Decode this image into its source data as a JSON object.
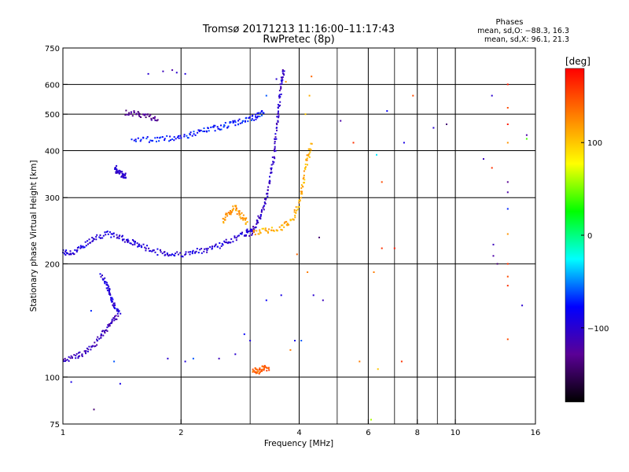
{
  "chart_data": {
    "type": "scatter",
    "title": "Tromsø 20171213 11:16:00–11:17:43",
    "subtitle": "RwPretec (8p)",
    "xlabel": "Frequency [MHz]",
    "ylabel": "Stationary phase Virtual Height [km]",
    "x_scale": "log",
    "y_scale": "log",
    "xlim": [
      1,
      16
    ],
    "ylim": [
      75,
      750
    ],
    "x_ticks": [
      1,
      2,
      4,
      6,
      8,
      10,
      16
    ],
    "x_tick_labels": [
      "1",
      "2",
      "4",
      "6",
      "8",
      "10",
      "16"
    ],
    "x_gridlines": [
      2,
      4,
      6,
      8,
      10
    ],
    "x_minor_gridlines": [
      3,
      5,
      7,
      9
    ],
    "y_ticks": [
      75,
      100,
      200,
      300,
      400,
      500,
      600,
      750
    ],
    "y_tick_labels": [
      "75",
      "100",
      "200",
      "300",
      "400",
      "500",
      "600",
      "750"
    ],
    "grid": true,
    "stats_block": {
      "heading": "Phases",
      "line_o": "mean, sd,O: −88.3, 16.3",
      "line_x": "mean, sd,X:  96.1, 21.3"
    },
    "colorbar": {
      "label": "[deg]",
      "range": [
        -180,
        180
      ],
      "ticks": [
        100,
        0,
        -100
      ],
      "tick_labels": [
        "100",
        "0",
        "−100"
      ],
      "colormap": [
        "#000000",
        "#5a0096",
        "#0000ff",
        "#00ffff",
        "#00ff00",
        "#ffff00",
        "#ff8000",
        "#ff0000"
      ]
    },
    "traces": [
      {
        "points": [
          [
            1.0,
            215
          ],
          [
            1.05,
            213
          ],
          [
            1.12,
            222
          ],
          [
            1.2,
            235
          ],
          [
            1.3,
            240
          ],
          [
            1.4,
            236
          ],
          [
            1.5,
            228
          ],
          [
            1.6,
            222
          ],
          [
            1.75,
            215
          ],
          [
            1.9,
            212
          ],
          [
            2.1,
            213
          ],
          [
            2.3,
            218
          ],
          [
            2.5,
            224
          ],
          [
            2.7,
            232
          ],
          [
            2.9,
            240
          ],
          [
            3.05,
            250
          ]
        ],
        "phase": -95
      },
      {
        "points": [
          [
            1.5,
            430
          ],
          [
            1.7,
            428
          ],
          [
            1.9,
            432
          ],
          [
            2.1,
            440
          ],
          [
            2.3,
            452
          ],
          [
            2.5,
            462
          ],
          [
            2.7,
            472
          ],
          [
            2.9,
            480
          ],
          [
            3.1,
            492
          ],
          [
            3.25,
            505
          ]
        ],
        "phase": -75
      },
      {
        "points": [
          [
            1.45,
            505
          ],
          [
            1.55,
            500
          ],
          [
            1.65,
            493
          ],
          [
            1.75,
            488
          ]
        ],
        "phase": -130
      },
      {
        "points": [
          [
            3.0,
            240
          ],
          [
            3.1,
            252
          ],
          [
            3.2,
            270
          ],
          [
            3.3,
            300
          ],
          [
            3.38,
            340
          ],
          [
            3.45,
            390
          ],
          [
            3.5,
            450
          ],
          [
            3.55,
            520
          ],
          [
            3.6,
            600
          ],
          [
            3.65,
            660
          ]
        ],
        "phase": -105
      },
      {
        "points": [
          [
            3.05,
            242
          ],
          [
            3.3,
            245
          ],
          [
            3.6,
            250
          ],
          [
            3.85,
            262
          ],
          [
            4.0,
            290
          ],
          [
            4.1,
            330
          ],
          [
            4.2,
            380
          ],
          [
            4.3,
            420
          ]
        ],
        "phase": 110
      },
      {
        "points": [
          [
            2.55,
            260
          ],
          [
            2.65,
            272
          ],
          [
            2.75,
            282
          ],
          [
            2.85,
            268
          ],
          [
            2.95,
            258
          ]
        ],
        "phase": 120
      },
      {
        "points": [
          [
            1.0,
            110
          ],
          [
            1.08,
            113
          ],
          [
            1.15,
            117
          ],
          [
            1.22,
            124
          ],
          [
            1.28,
            132
          ],
          [
            1.33,
            140
          ],
          [
            1.38,
            145
          ]
        ],
        "phase": -110
      },
      {
        "points": [
          [
            1.25,
            185
          ],
          [
            1.3,
            175
          ],
          [
            1.32,
            165
          ],
          [
            1.35,
            155
          ],
          [
            1.4,
            148
          ]
        ],
        "phase": -95
      },
      {
        "points": [
          [
            1.36,
            360
          ],
          [
            1.38,
            350
          ],
          [
            1.42,
            345
          ],
          [
            1.45,
            342
          ]
        ],
        "phase": -100
      },
      {
        "points": [
          [
            3.05,
            105
          ],
          [
            3.15,
            103
          ],
          [
            3.25,
            106
          ],
          [
            3.35,
            104
          ]
        ],
        "phase": 140
      }
    ],
    "scattered_points": [
      [
        1.65,
        640,
        -100
      ],
      [
        1.8,
        650,
        -110
      ],
      [
        1.9,
        655,
        -120
      ],
      [
        1.95,
        645,
        -100
      ],
      [
        2.05,
        640,
        -95
      ],
      [
        3.3,
        560,
        -60
      ],
      [
        3.5,
        620,
        -100
      ],
      [
        3.65,
        640,
        -110
      ],
      [
        3.7,
        610,
        120
      ],
      [
        4.3,
        630,
        140
      ],
      [
        4.25,
        560,
        110
      ],
      [
        4.15,
        500,
        100
      ],
      [
        5.1,
        480,
        -120
      ],
      [
        5.5,
        420,
        160
      ],
      [
        6.3,
        390,
        -30
      ],
      [
        6.5,
        330,
        150
      ],
      [
        6.7,
        510,
        -80
      ],
      [
        7.4,
        420,
        -90
      ],
      [
        7.8,
        560,
        150
      ],
      [
        8.8,
        460,
        -100
      ],
      [
        9.5,
        470,
        -140
      ],
      [
        11.8,
        380,
        -110
      ],
      [
        12.4,
        560,
        -100
      ],
      [
        12.4,
        360,
        160
      ],
      [
        13.6,
        600,
        170
      ],
      [
        13.6,
        520,
        150
      ],
      [
        13.6,
        470,
        170
      ],
      [
        13.6,
        420,
        120
      ],
      [
        13.6,
        330,
        -130
      ],
      [
        13.6,
        310,
        -120
      ],
      [
        13.6,
        280,
        -70
      ],
      [
        13.6,
        240,
        120
      ],
      [
        13.6,
        200,
        160
      ],
      [
        13.6,
        185,
        150
      ],
      [
        13.6,
        175,
        160
      ],
      [
        13.6,
        126,
        150
      ],
      [
        12.5,
        225,
        -110
      ],
      [
        12.5,
        210,
        -120
      ],
      [
        12.8,
        200,
        -140
      ],
      [
        14.8,
        155,
        -100
      ],
      [
        15.2,
        440,
        -120
      ],
      [
        15.2,
        430,
        40
      ],
      [
        3.0,
        125,
        -95
      ],
      [
        2.9,
        130,
        -80
      ],
      [
        2.75,
        115,
        -100
      ],
      [
        2.5,
        112,
        -110
      ],
      [
        1.85,
        112,
        -100
      ],
      [
        2.05,
        110,
        -95
      ],
      [
        2.15,
        112,
        -60
      ],
      [
        3.3,
        160,
        -80
      ],
      [
        3.6,
        165,
        -90
      ],
      [
        3.9,
        125,
        -90
      ],
      [
        4.05,
        125,
        -60
      ],
      [
        4.2,
        190,
        130
      ],
      [
        4.35,
        165,
        -100
      ],
      [
        4.6,
        160,
        -110
      ],
      [
        4.5,
        235,
        -140
      ],
      [
        3.95,
        212,
        140
      ],
      [
        5.7,
        110,
        130
      ],
      [
        6.2,
        190,
        130
      ],
      [
        6.35,
        105,
        100
      ],
      [
        6.5,
        220,
        160
      ],
      [
        7.0,
        220,
        170
      ],
      [
        7.3,
        110,
        160
      ],
      [
        6.1,
        77,
        60
      ],
      [
        1.05,
        97,
        -90
      ],
      [
        1.2,
        82,
        -140
      ],
      [
        1.4,
        96,
        -90
      ],
      [
        1.35,
        110,
        -60
      ],
      [
        1.18,
        150,
        -70
      ],
      [
        3.8,
        118,
        130
      ]
    ]
  }
}
